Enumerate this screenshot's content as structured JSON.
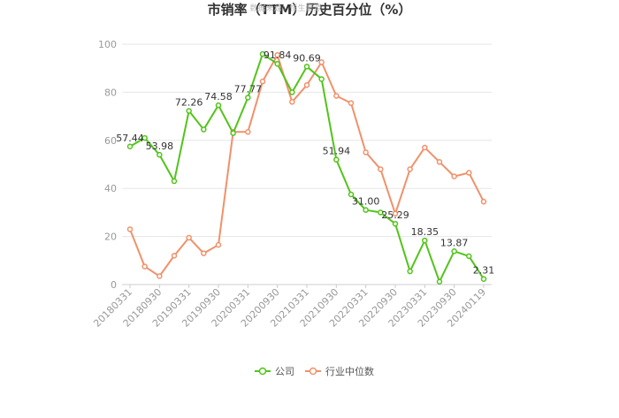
{
  "chart_data": {
    "type": "line",
    "title": "市销率（TTM）历史百分位（%）",
    "watermark": "数据来源：恒生聚源",
    "ylim": [
      0,
      100
    ],
    "yticks": [
      0,
      20,
      40,
      60,
      80,
      100
    ],
    "grid": true,
    "legend_position": "bottom",
    "x": [
      "20180331",
      "20180630",
      "20180930",
      "20181231",
      "20190331",
      "20190630",
      "20190930",
      "20191231",
      "20200331",
      "20200630",
      "20200930",
      "20201231",
      "20210331",
      "20210630",
      "20210930",
      "20211231",
      "20220331",
      "20220630",
      "20220930",
      "20221231",
      "20230331",
      "20230630",
      "20230930",
      "20231231",
      "20240119"
    ],
    "xticks": [
      "20180331",
      "20180930",
      "20190331",
      "20190930",
      "20200331",
      "20200930",
      "20210331",
      "20210930",
      "20220331",
      "20220930",
      "20230331",
      "20230930",
      "20240119"
    ],
    "series": [
      {
        "name": "公司",
        "color": "#52c41a",
        "values": [
          57.44,
          61.0,
          53.98,
          43.0,
          72.26,
          64.5,
          74.58,
          63.0,
          77.77,
          95.9,
          91.84,
          80.0,
          90.69,
          85.5,
          51.94,
          37.5,
          31.0,
          30.0,
          25.29,
          5.5,
          18.35,
          1.2,
          13.87,
          11.8,
          2.31
        ],
        "labels": [
          "57.44",
          "",
          "53.98",
          "",
          "72.26",
          "",
          "74.58",
          "",
          "77.77",
          "",
          "91.84",
          "",
          "90.69",
          "",
          "51.94",
          "",
          "31.00",
          "",
          "25.29",
          "",
          "18.35",
          "",
          "13.87",
          "",
          "2.31"
        ]
      },
      {
        "name": "行业中位数",
        "color": "#f0916a",
        "values": [
          23.0,
          7.5,
          3.5,
          12.0,
          19.5,
          13.0,
          16.5,
          63.5,
          63.5,
          84.5,
          95.5,
          76.0,
          83.0,
          92.5,
          78.5,
          75.5,
          55.0,
          48.0,
          29.5,
          48.0,
          57.0,
          51.0,
          45.0,
          46.5,
          34.5
        ]
      }
    ]
  }
}
